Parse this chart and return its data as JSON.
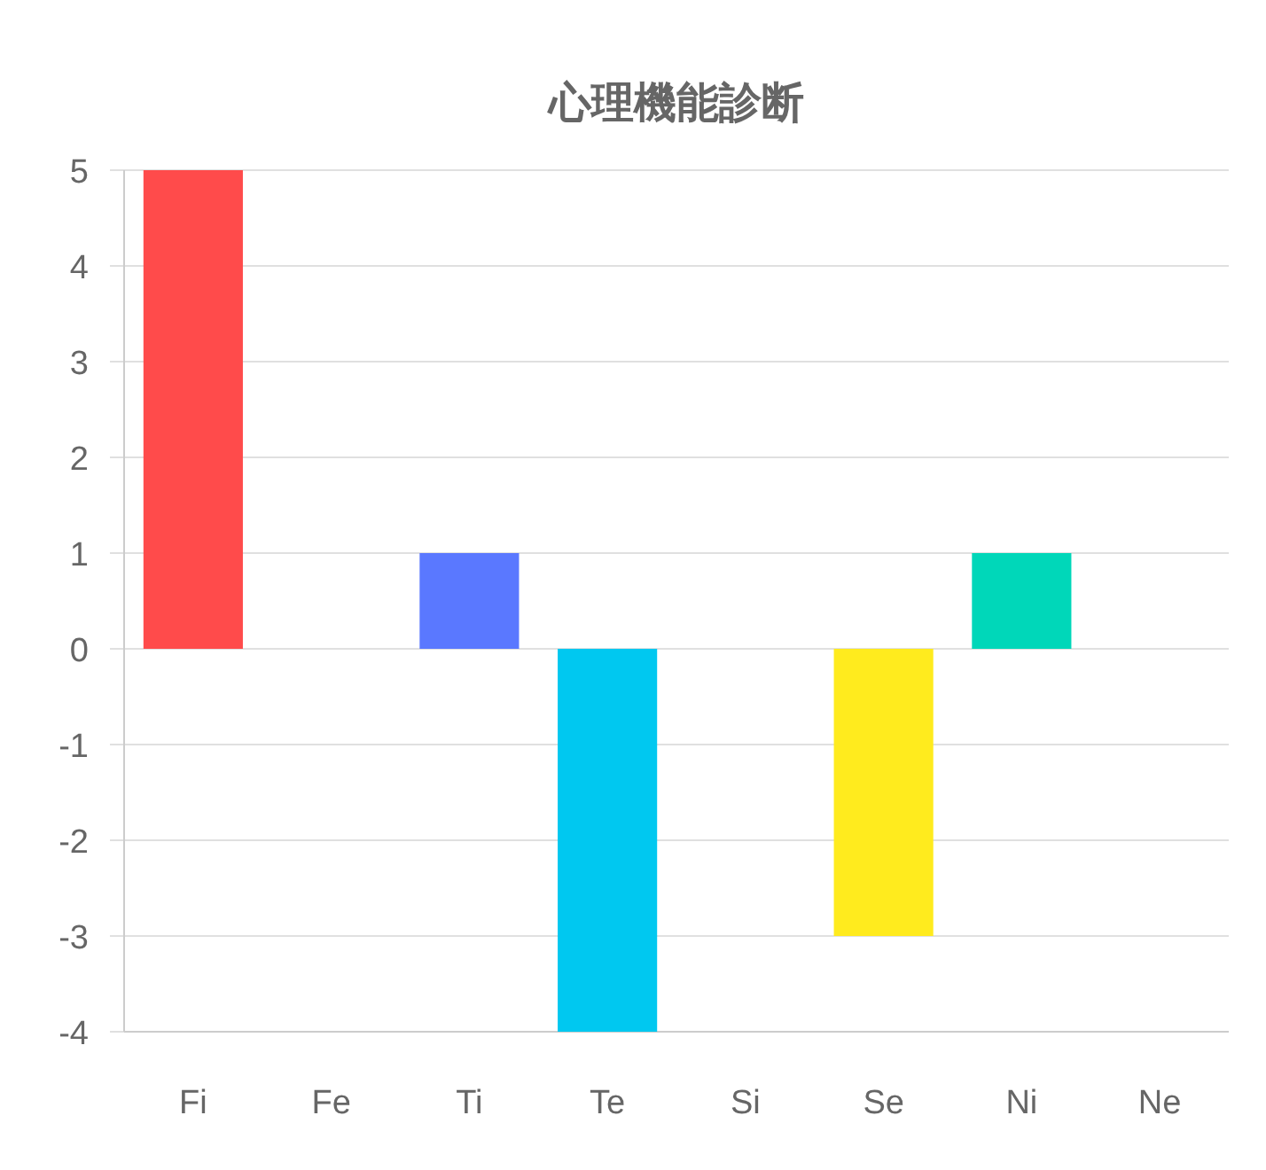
{
  "chart_data": {
    "type": "bar",
    "title": "心理機能診断",
    "categories": [
      "Fi",
      "Fe",
      "Ti",
      "Te",
      "Si",
      "Se",
      "Ni",
      "Ne"
    ],
    "values": [
      5,
      0,
      1,
      -4,
      0,
      -3,
      1,
      0
    ],
    "colors": [
      "#ff4b4b",
      null,
      "#5a78ff",
      "#00c8f0",
      null,
      "#ffeb1e",
      "#00d7b9",
      null
    ],
    "ylim": [
      -4,
      5
    ],
    "yticks": [
      -4,
      -3,
      -2,
      -1,
      0,
      1,
      2,
      3,
      4,
      5
    ],
    "grid": "y"
  }
}
